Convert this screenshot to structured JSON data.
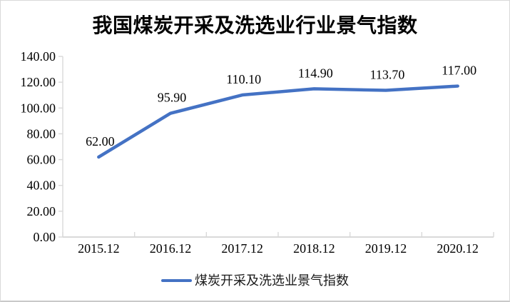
{
  "chart_data": {
    "type": "line",
    "title": "我国煤炭开采及洗选业行业景气指数",
    "categories": [
      "2015.12",
      "2016.12",
      "2017.12",
      "2018.12",
      "2019.12",
      "2020.12"
    ],
    "series": [
      {
        "name": "煤炭开采及洗选业景气指数",
        "values": [
          62.0,
          95.9,
          110.1,
          114.9,
          113.7,
          117.0
        ]
      }
    ],
    "data_labels": [
      "62.00",
      "95.90",
      "110.10",
      "114.90",
      "113.70",
      "117.00"
    ],
    "xlabel": "",
    "ylabel": "",
    "ylim": [
      0,
      140
    ],
    "ytick_step": 20,
    "ytick_labels": [
      "0.00",
      "20.00",
      "40.00",
      "60.00",
      "80.00",
      "100.00",
      "120.00",
      "140.00"
    ],
    "grid": false,
    "legend_position": "bottom",
    "colors": {
      "line": "#4472C4",
      "axis": "#d9d9d9",
      "text": "#000000"
    }
  },
  "legend": {
    "label": "煤炭开采及洗选业景气指数"
  }
}
